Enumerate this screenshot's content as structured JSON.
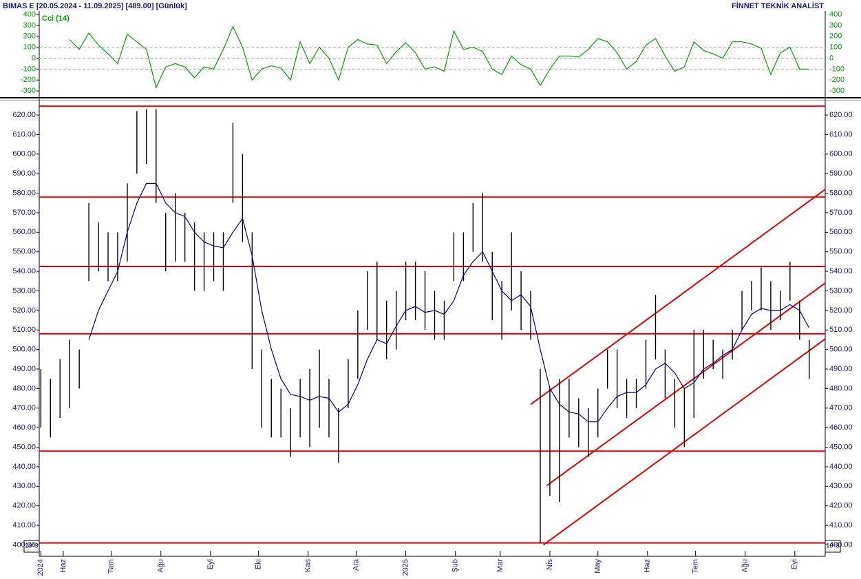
{
  "chart_data": {
    "type": "stock",
    "title": "BIMAS E  [20.05.2024 - 11.09.2025]  [489.00]  [Günlük]",
    "source": "FİNNET TEKNİK ANALİST",
    "axis_unit": "10^3",
    "x": [
      -2,
      4,
      10,
      16,
      22,
      28,
      34,
      40,
      46,
      52,
      58,
      64,
      70,
      76,
      82,
      88,
      94,
      100,
      106,
      112,
      118,
      124,
      130,
      136,
      142,
      148,
      154,
      160,
      166,
      172,
      178,
      184,
      190,
      196,
      202,
      208,
      214,
      220,
      226,
      232,
      238,
      244,
      250,
      256,
      262,
      268,
      274,
      280,
      286,
      292,
      298,
      304,
      310,
      316,
      322,
      328,
      334,
      340,
      346,
      352,
      358,
      364,
      370,
      376,
      382,
      388,
      394,
      400,
      406,
      412,
      418,
      424,
      430,
      436,
      442,
      448,
      454,
      460,
      466,
      472,
      478
    ],
    "low": [
      460,
      455,
      465,
      470,
      480,
      535,
      540,
      535,
      535,
      545,
      590,
      595,
      575,
      540,
      545,
      545,
      530,
      530,
      535,
      530,
      575,
      555,
      490,
      460,
      455,
      455,
      445,
      455,
      450,
      460,
      455,
      442,
      470,
      485,
      510,
      505,
      495,
      500,
      515,
      515,
      510,
      505,
      505,
      535,
      535,
      550,
      545,
      515,
      505,
      520,
      510,
      505,
      401,
      425,
      422,
      455,
      450,
      445,
      455,
      480,
      470,
      465,
      470,
      480,
      495,
      475,
      460,
      450,
      465,
      485,
      490,
      485,
      495,
      510,
      520,
      520,
      510,
      515,
      525,
      505,
      485
    ],
    "high": [
      490,
      485,
      495,
      505,
      500,
      575,
      565,
      560,
      560,
      585,
      622,
      623,
      623,
      570,
      580,
      570,
      565,
      560,
      560,
      560,
      616,
      600,
      560,
      500,
      485,
      480,
      470,
      485,
      490,
      500,
      485,
      470,
      495,
      520,
      540,
      545,
      525,
      530,
      545,
      545,
      540,
      530,
      525,
      560,
      560,
      575,
      580,
      550,
      535,
      560,
      540,
      530,
      490,
      480,
      485,
      485,
      475,
      470,
      480,
      500,
      500,
      485,
      485,
      505,
      528,
      500,
      485,
      480,
      510,
      510,
      505,
      500,
      510,
      530,
      535,
      542,
      535,
      530,
      545,
      525,
      505
    ],
    "bar_color": "#000000",
    "ma": {
      "color": "#00008b",
      "values": [
        null,
        null,
        null,
        null,
        null,
        505,
        520,
        530,
        540,
        560,
        575,
        585,
        585,
        575,
        570,
        568,
        560,
        555,
        553,
        552,
        560,
        567,
        548,
        520,
        500,
        485,
        477,
        476,
        474,
        476,
        475,
        468,
        472,
        482,
        495,
        505,
        503,
        512,
        520,
        522,
        519,
        520,
        518,
        525,
        538,
        545,
        550,
        540,
        530,
        525,
        528,
        522,
        500,
        480,
        472,
        468,
        467,
        463,
        463,
        470,
        476,
        478,
        478,
        482,
        490,
        493,
        488,
        480,
        483,
        490,
        493,
        497,
        500,
        510,
        518,
        521,
        520,
        520,
        523,
        520,
        511
      ]
    },
    "xlim": [
      -3,
      488
    ],
    "xticks": [
      {
        "value": -2,
        "label": "2024"
      },
      {
        "value": 12,
        "label": "Haz"
      },
      {
        "value": 42,
        "label": "Tem"
      },
      {
        "value": 73,
        "label": "Ağu"
      },
      {
        "value": 104,
        "label": "Eyl"
      },
      {
        "value": 134,
        "label": "Eki"
      },
      {
        "value": 165,
        "label": "Kas"
      },
      {
        "value": 195,
        "label": "Ara"
      },
      {
        "value": 226,
        "label": "2025"
      },
      {
        "value": 257,
        "label": "Şub"
      },
      {
        "value": 285,
        "label": "Mar"
      },
      {
        "value": 316,
        "label": "Nis"
      },
      {
        "value": 346,
        "label": "May"
      },
      {
        "value": 377,
        "label": "Haz"
      },
      {
        "value": 407,
        "label": "Tem"
      },
      {
        "value": 438,
        "label": "Ağu"
      },
      {
        "value": 469,
        "label": "Eyl"
      }
    ],
    "ylim": [
      397,
      626
    ],
    "yticks": [
      {
        "value": 400,
        "label": "400.00"
      },
      {
        "value": 410,
        "label": "410.00"
      },
      {
        "value": 420,
        "label": "420.00"
      },
      {
        "value": 430,
        "label": "430.00"
      },
      {
        "value": 440,
        "label": "440.00"
      },
      {
        "value": 450,
        "label": "450.00"
      },
      {
        "value": 460,
        "label": "460.00"
      },
      {
        "value": 470,
        "label": "470.00"
      },
      {
        "value": 480,
        "label": "480.00"
      },
      {
        "value": 490,
        "label": "490.00"
      },
      {
        "value": 500,
        "label": "500.00"
      },
      {
        "value": 510,
        "label": "510.00"
      },
      {
        "value": 520,
        "label": "520.00"
      },
      {
        "value": 530,
        "label": "530.00"
      },
      {
        "value": 540,
        "label": "540.00"
      },
      {
        "value": 550,
        "label": "550.00"
      },
      {
        "value": 560,
        "label": "560.00"
      },
      {
        "value": 570,
        "label": "570.00"
      },
      {
        "value": 580,
        "label": "580.00"
      },
      {
        "value": 590,
        "label": "590.00"
      },
      {
        "value": 600,
        "label": "600.00"
      },
      {
        "value": 610,
        "label": "610.00"
      },
      {
        "value": 620,
        "label": "620.00"
      }
    ],
    "hlines": {
      "color": "#e00000",
      "values": [
        624.5,
        578,
        542.5,
        508,
        448,
        401
      ]
    },
    "trendlines": {
      "color": "#e00000",
      "lines": [
        {
          "x": [
            304,
            488
          ],
          "y": [
            471.9,
            581.9
          ]
        },
        {
          "x": [
            314,
            488
          ],
          "y": [
            430.3,
            534
          ]
        },
        {
          "x": [
            312,
            488
          ],
          "y": [
            400,
            505.4
          ]
        }
      ]
    },
    "indicator": {
      "title": "Cci (14)",
      "color": "#00a000",
      "values": [
        null,
        null,
        null,
        170,
        80,
        230,
        120,
        40,
        -50,
        220,
        150,
        80,
        -270,
        -80,
        -50,
        -80,
        -180,
        -80,
        -100,
        80,
        290,
        100,
        -200,
        -100,
        -70,
        -90,
        -200,
        150,
        -50,
        100,
        0,
        -200,
        100,
        170,
        130,
        120,
        -50,
        60,
        140,
        50,
        -100,
        -80,
        -120,
        250,
        80,
        100,
        60,
        -100,
        -150,
        20,
        -60,
        -100,
        -250,
        -100,
        20,
        20,
        10,
        80,
        180,
        150,
        50,
        -100,
        -30,
        120,
        180,
        20,
        -120,
        -80,
        150,
        70,
        40,
        0,
        150,
        150,
        130,
        90,
        -150,
        50,
        100,
        -100,
        -100
      ],
      "ylim": [
        -350,
        432
      ],
      "yticks": [
        400,
        300,
        200,
        100,
        0,
        -100,
        -200,
        -300
      ],
      "grid_lines": [
        100,
        0,
        -100
      ]
    }
  }
}
